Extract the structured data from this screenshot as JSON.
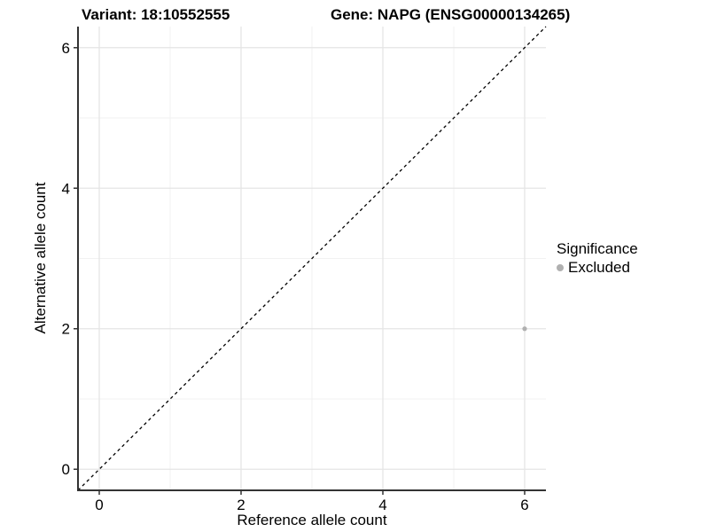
{
  "chart_data": {
    "type": "scatter",
    "title_left": "Variant: 18:10552555",
    "title_right": "Gene: NAPG (ENSG00000134265)",
    "xlabel": "Reference allele count",
    "ylabel": "Alternative allele count",
    "xlim": [
      -0.3,
      6.3
    ],
    "ylim": [
      -0.3,
      6.3
    ],
    "x_ticks": [
      0,
      2,
      4,
      6
    ],
    "y_ticks": [
      0,
      2,
      4,
      6
    ],
    "x_minor_ticks": [
      1,
      3,
      5
    ],
    "y_minor_ticks": [
      1,
      3,
      5
    ],
    "grid": {
      "major_color": "#e5e5e5",
      "minor_color": "#f2f2f2",
      "background": "#ffffff"
    },
    "axis_color": "#333333",
    "tick_label_color": "#000000",
    "reference_line": {
      "type": "identity",
      "style": "dashed",
      "slope": 1,
      "intercept": 0,
      "color": "#000000"
    },
    "series": [
      {
        "name": "Excluded",
        "color": "#b0b0b0",
        "points": [
          {
            "x": 6,
            "y": 2
          }
        ]
      }
    ],
    "legend": {
      "title": "Significance",
      "position": "right",
      "entries": [
        {
          "label": "Excluded",
          "color": "#b0b0b0",
          "marker": "circle"
        }
      ]
    }
  }
}
